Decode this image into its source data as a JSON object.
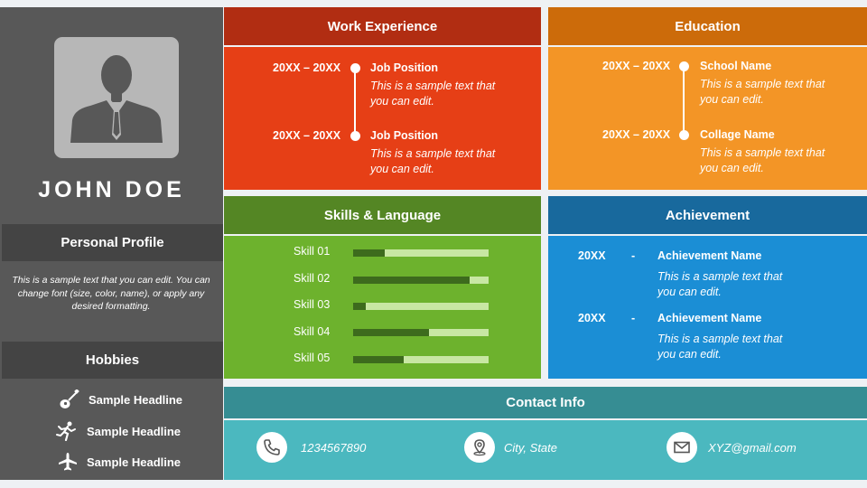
{
  "profile": {
    "name": "JOHN DOE",
    "personal_profile_title": "Personal Profile",
    "personal_profile_text": "This is a sample text that you can edit. You can change font (size, color, name), or apply any desired formatting.",
    "hobbies_title": "Hobbies",
    "hobbies": [
      {
        "label": "Sample Headline",
        "icon": "guitar-icon"
      },
      {
        "label": "Sample Headline",
        "icon": "running-person-icon"
      },
      {
        "label": "Sample Headline",
        "icon": "airplane-icon"
      }
    ]
  },
  "work": {
    "title": "Work Experience",
    "items": [
      {
        "date": "20XX – 20XX",
        "title": "Job Position",
        "line1": "This is a sample text that",
        "line2": "you can edit."
      },
      {
        "date": "20XX – 20XX",
        "title": "Job Position",
        "line1": "This is a sample text that",
        "line2": "you can edit."
      }
    ]
  },
  "education": {
    "title": "Education",
    "items": [
      {
        "date": "20XX – 20XX",
        "title": "School Name",
        "line1": "This is a sample text that",
        "line2": "you can edit."
      },
      {
        "date": "20XX – 20XX",
        "title": "Collage Name",
        "line1": "This is a sample text that",
        "line2": "you can edit."
      }
    ]
  },
  "skills": {
    "title": "Skills & Language",
    "items": [
      {
        "label": "Skill 01",
        "level": 0.23
      },
      {
        "label": "Skill 02",
        "level": 0.86
      },
      {
        "label": "Skill 03",
        "level": 0.09
      },
      {
        "label": "Skill 04",
        "level": 0.56
      },
      {
        "label": "Skill 05",
        "level": 0.37
      }
    ]
  },
  "achievement": {
    "title": "Achievement",
    "items": [
      {
        "year": "20XX",
        "sep": "-",
        "title": "Achievement Name",
        "line1": "This is a sample text that",
        "line2": "you can edit."
      },
      {
        "year": "20XX",
        "sep": "-",
        "title": "Achievement Name",
        "line1": "This is a sample text that",
        "line2": "you can edit."
      }
    ]
  },
  "contact": {
    "title": "Contact Info",
    "phone": "1234567890",
    "location": "City, State",
    "email": "XYZ@gmail.com"
  }
}
